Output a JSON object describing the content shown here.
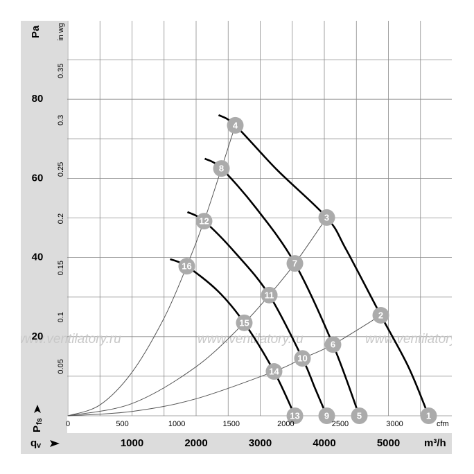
{
  "chart_data": {
    "type": "line",
    "ylabel": "Pa",
    "y2label": "in wg",
    "xlabel": "m³/h",
    "x2label": "cfm",
    "y_symbol": "P",
    "y_symbol_sub": "fs",
    "x_symbol": "q",
    "x_symbol_sub": "v",
    "watermark": "www.ventilatory.ru",
    "xlim": [
      0,
      6000
    ],
    "ylim": [
      0,
      100
    ],
    "xticks": [
      1000,
      2000,
      3000,
      4000,
      5000
    ],
    "yticks": [
      20,
      40,
      60,
      80
    ],
    "xminorticks": [
      500,
      1000,
      1500,
      2000,
      2500,
      3000,
      3500,
      4000,
      4500,
      5000,
      5500
    ],
    "yminorticks": [
      10,
      20,
      30,
      40,
      50,
      60,
      70,
      80,
      90
    ],
    "x2lim": [
      0,
      3531
    ],
    "x2ticks": [
      0,
      500,
      1000,
      1500,
      2000,
      2500,
      3000
    ],
    "y2lim": [
      0,
      0.4015
    ],
    "y2ticks": [
      0.05,
      0.1,
      0.15,
      0.2,
      0.25,
      0.3,
      0.35
    ],
    "grid": true,
    "series": [
      {
        "color": "#000000",
        "x": [
          2351,
          2611,
          3259,
          4038,
          4341,
          4881,
          5314,
          5627
        ],
        "values": [
          76.0,
          73.4,
          62.2,
          50.1,
          42.0,
          25.4,
          12.3,
          0
        ]
      },
      {
        "color": "#000000",
        "x": [
          2135,
          2395,
          2935,
          3541,
          4135,
          4546
        ],
        "values": [
          65.0,
          62.5,
          52.5,
          38.5,
          18.0,
          0
        ]
      },
      {
        "color": "#000000",
        "x": [
          1865,
          2124,
          2611,
          3141,
          3659,
          3854,
          4038
        ],
        "values": [
          51.5,
          49.2,
          41.2,
          30.5,
          14.5,
          7,
          0
        ]
      },
      {
        "color": "#000000",
        "x": [
          1595,
          1854,
          2341,
          2751,
          3216,
          3541
        ],
        "values": [
          39.6,
          37.8,
          31.5,
          23.5,
          11.2,
          0
        ]
      }
    ],
    "system_curves": [
      {
        "color": "#555555",
        "x": [
          0,
          500,
          1000,
          1500,
          1854,
          2124,
          2395,
          2611
        ],
        "values": [
          0,
          2.75,
          11,
          24.7,
          37.8,
          49.2,
          62.5,
          73.4
        ]
      },
      {
        "color": "#555555",
        "x": [
          0,
          1000,
          2000,
          2751,
          3141,
          3541,
          4038
        ],
        "values": [
          0,
          3.1,
          12.4,
          23.5,
          30.5,
          38.5,
          50.1
        ]
      },
      {
        "color": "#555555",
        "x": [
          0,
          1000,
          2000,
          3216,
          3659,
          4135,
          4881
        ],
        "values": [
          0,
          1.1,
          4.3,
          11.2,
          14.5,
          18.0,
          25.4
        ]
      }
    ],
    "point_color": "#ababab",
    "points": [
      {
        "label": "1",
        "x": 5627,
        "y": 0
      },
      {
        "label": "2",
        "x": 4881,
        "y": 25.4
      },
      {
        "label": "3",
        "x": 4038,
        "y": 50.1
      },
      {
        "label": "4",
        "x": 2611,
        "y": 73.4
      },
      {
        "label": "5",
        "x": 4546,
        "y": 0
      },
      {
        "label": "6",
        "x": 4135,
        "y": 18.0
      },
      {
        "label": "7",
        "x": 3541,
        "y": 38.5
      },
      {
        "label": "8",
        "x": 2395,
        "y": 62.5
      },
      {
        "label": "9",
        "x": 4038,
        "y": 0
      },
      {
        "label": "10",
        "x": 3659,
        "y": 14.5
      },
      {
        "label": "11",
        "x": 3141,
        "y": 30.5
      },
      {
        "label": "12",
        "x": 2124,
        "y": 49.2
      },
      {
        "label": "13",
        "x": 3541,
        "y": 0
      },
      {
        "label": "14",
        "x": 3216,
        "y": 11.2
      },
      {
        "label": "15",
        "x": 2751,
        "y": 23.5
      },
      {
        "label": "16",
        "x": 1854,
        "y": 37.8
      }
    ]
  }
}
